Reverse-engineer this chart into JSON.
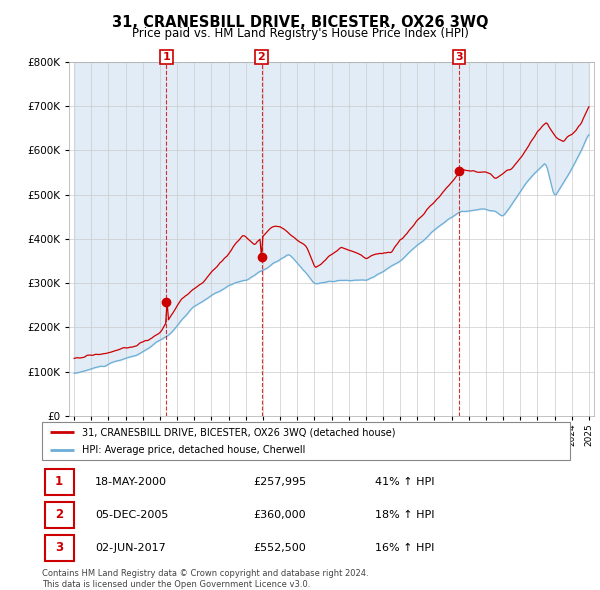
{
  "title": "31, CRANESBILL DRIVE, BICESTER, OX26 3WQ",
  "subtitle": "Price paid vs. HM Land Registry's House Price Index (HPI)",
  "legend_line1": "31, CRANESBILL DRIVE, BICESTER, OX26 3WQ (detached house)",
  "legend_line2": "HPI: Average price, detached house, Cherwell",
  "table": [
    {
      "num": 1,
      "date": "18-MAY-2000",
      "price": "£257,995",
      "hpi": "41% ↑ HPI"
    },
    {
      "num": 2,
      "date": "05-DEC-2005",
      "price": "£360,000",
      "hpi": "18% ↑ HPI"
    },
    {
      "num": 3,
      "date": "02-JUN-2017",
      "price": "£552,500",
      "hpi": "16% ↑ HPI"
    }
  ],
  "footer": "Contains HM Land Registry data © Crown copyright and database right 2024.\nThis data is licensed under the Open Government Licence v3.0.",
  "purchase_dates": [
    2000.38,
    2005.92,
    2017.42
  ],
  "purchase_prices": [
    257995,
    360000,
    552500
  ],
  "hpi_line_color": "#6baed6",
  "hpi_fill_color": "#c6dbef",
  "price_line_color": "#cc0000",
  "ylim": [
    0,
    800000
  ],
  "xlim_start": 1994.7,
  "xlim_end": 2025.3,
  "background_color": "#ffffff"
}
